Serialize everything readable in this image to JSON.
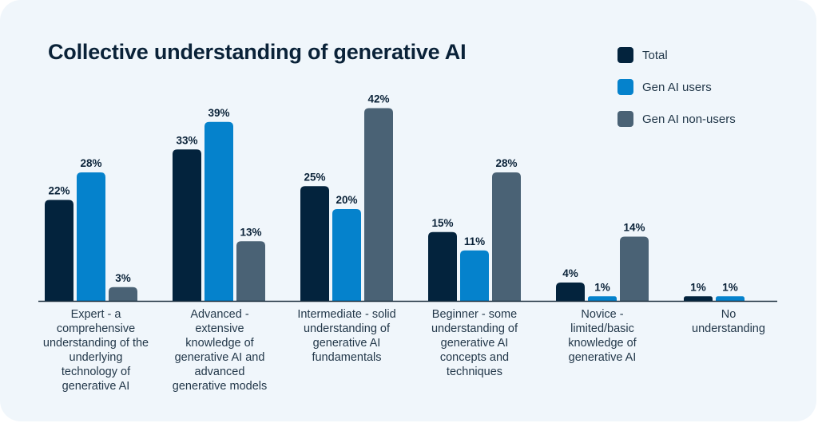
{
  "title": "Collective understanding of generative AI",
  "legend": [
    {
      "label": "Total",
      "color": "#03233d"
    },
    {
      "label": "Gen AI users",
      "color": "#0582cc"
    },
    {
      "label": "Gen AI non-users",
      "color": "#4a6275"
    }
  ],
  "chart_data": {
    "type": "bar",
    "title": "Collective understanding of generative AI",
    "categories": [
      [
        "Expert - a",
        "comprehensive",
        "understanding of the",
        "underlying",
        "technology of",
        "generative AI"
      ],
      [
        "Advanced -",
        "extensive",
        "knowledge of",
        "generative AI and",
        "advanced",
        "generative models"
      ],
      [
        "Intermediate - solid",
        "understanding of",
        "generative AI",
        "fundamentals"
      ],
      [
        "Beginner - some",
        "understanding of",
        "generative AI",
        "concepts and",
        "techniques"
      ],
      [
        "Novice -",
        "limited/basic",
        "knowledge of",
        "generative AI"
      ],
      [
        "No",
        "understanding"
      ]
    ],
    "series": [
      {
        "name": "Total",
        "color": "#03233d",
        "values": [
          22,
          33,
          25,
          15,
          4,
          1
        ],
        "labels": [
          "22%",
          "33%",
          "25%",
          "15%",
          "4%",
          "1%"
        ]
      },
      {
        "name": "Gen AI users",
        "color": "#0582cc",
        "values": [
          28,
          39,
          20,
          11,
          1,
          1
        ],
        "labels": [
          "28%",
          "39%",
          "20%",
          "11%",
          "1%",
          "1%"
        ]
      },
      {
        "name": "Gen AI non-users",
        "color": "#4a6275",
        "values": [
          3,
          13,
          42,
          28,
          14,
          null
        ],
        "labels": [
          "3%",
          "13%",
          "42%",
          "28%",
          "14%",
          ""
        ]
      }
    ],
    "ylim": [
      0,
      42
    ],
    "grid": false,
    "legend_position": "top-right",
    "xlabel": "",
    "ylabel": ""
  }
}
